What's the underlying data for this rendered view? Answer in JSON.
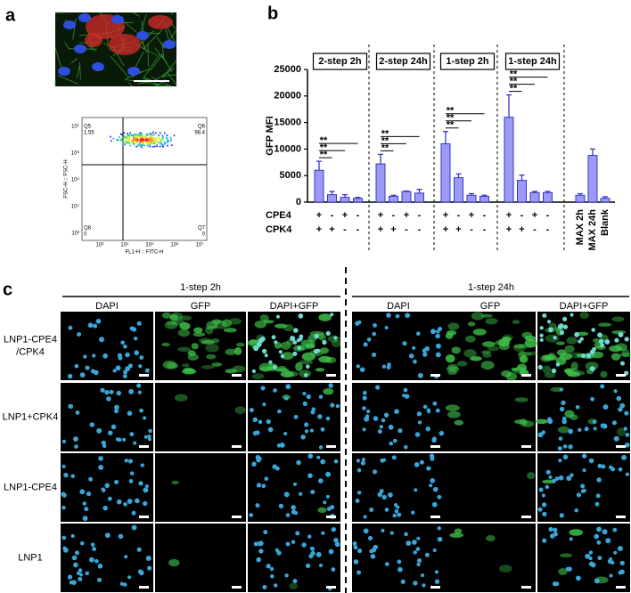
{
  "panel_labels": [
    "a",
    "b",
    "c"
  ],
  "flow": {
    "quadrants": [
      {
        "name": "Q5",
        "value": "1.55"
      },
      {
        "name": "Q6",
        "value": "98.4"
      },
      {
        "name": "Q8",
        "value": "0"
      },
      {
        "name": "Q7",
        "value": "0"
      }
    ],
    "y_label": "FSC-H :: FSC-H",
    "x_label": "FL1-H :: FITC-H",
    "yticks": [
      "10⁷",
      "10⁶",
      "10⁵",
      "10⁴",
      "10³"
    ],
    "xticks": [
      "10³",
      "10⁴",
      "10⁵",
      "10⁶",
      "10⁷"
    ]
  },
  "chart_data": {
    "type": "bar",
    "y_label": "GFP MFI",
    "groups": [
      "2-step 2h",
      "2-step 24h",
      "1-step 2h",
      "1-step 24h"
    ],
    "categories": [
      null,
      null,
      null,
      null,
      null,
      null,
      null,
      null,
      null,
      null,
      null,
      null,
      null,
      null,
      null,
      null,
      "MAX 2h",
      "MAX 24h",
      "Blank"
    ],
    "values": [
      6000,
      1400,
      900,
      700,
      7200,
      1100,
      2000,
      1700,
      11000,
      4600,
      1300,
      1100,
      16000,
      4100,
      1800,
      1800,
      1300,
      8800,
      700
    ],
    "errors": [
      1700,
      600,
      500,
      200,
      1800,
      200,
      100,
      700,
      2300,
      700,
      300,
      200,
      4200,
      1000,
      200,
      200,
      300,
      1200,
      300
    ],
    "color": "#9b9bf7",
    "edge_color": "#3535c8",
    "ylim": [
      0,
      25000
    ],
    "yticks": [
      0,
      5000,
      10000,
      15000,
      20000,
      25000
    ],
    "significance": [
      [
        "**",
        "**",
        "**"
      ],
      [
        "**",
        "**",
        "**"
      ],
      [
        "**",
        "**",
        "**"
      ],
      [
        "**",
        "**",
        "**"
      ]
    ],
    "conditions": [
      {
        "name": "CPE4",
        "signs": [
          "+",
          "-",
          "+",
          "-",
          "+",
          "-",
          "+",
          "-",
          "+",
          "-",
          "+",
          "-",
          "+",
          "-",
          "+",
          "-"
        ]
      },
      {
        "name": "CPK4",
        "signs": [
          "+",
          "+",
          "-",
          "-",
          "+",
          "+",
          "-",
          "-",
          "+",
          "+",
          "-",
          "-",
          "+",
          "+",
          "-",
          "-"
        ]
      }
    ]
  },
  "microscopy": {
    "timepoints": [
      {
        "title": "1-step 2h",
        "channels": [
          "DAPI",
          "GFP",
          "DAPI+GFP"
        ]
      },
      {
        "title": "1-step 24h",
        "channels": [
          "DAPI",
          "GFP",
          "DAPI+GFP"
        ]
      }
    ],
    "rows": [
      [
        "LNP1-CPE4",
        "/CPK4"
      ],
      [
        "LNP1+CPK4"
      ],
      [
        "LNP1-CPE4"
      ],
      [
        "LNP1"
      ]
    ]
  }
}
